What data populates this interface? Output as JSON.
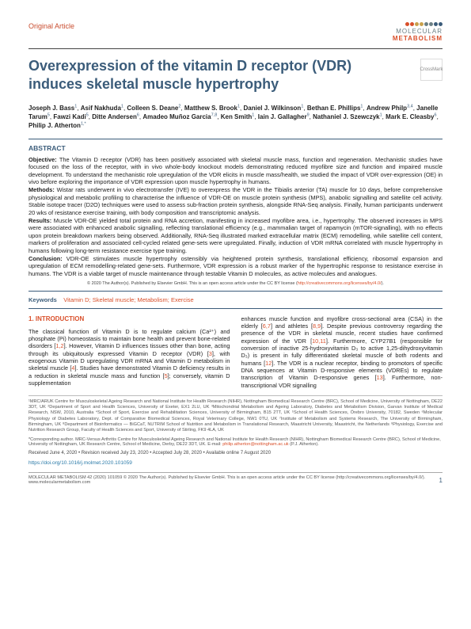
{
  "articleType": "Original Article",
  "journal": {
    "line1": "MOLECULAR",
    "line2": "METABOLISM"
  },
  "logoDots": [
    "#d94f2a",
    "#d94f2a",
    "#c9a14d",
    "#c9a14d",
    "#6b7f84",
    "#6b7f84",
    "#3b5c7a",
    "#3b5c7a"
  ],
  "title": "Overexpression of the vitamin D receptor (VDR) induces skeletal muscle hypertrophy",
  "badge": "CrossMark",
  "authors": "Joseph J. Bass|1|, Asif Nakhuda|1|, Colleen S. Deane|2|, Matthew S. Brook|1|, Daniel J. Wilkinson|1|, Bethan E. Phillips|1|, Andrew Philp|3,4|, Janelle Tarum|5|, Fawzi Kadi|5|, Ditte Andersen|6|, Amadeo Muñoz Garcia|7,8|, Ken Smith|1|, Iain J. Gallagher|9|, Nathaniel J. Szewczyk|1|, Mark E. Cleasby|6|, Philip J. Atherton|1,*|",
  "abstractHead": "ABSTRACT",
  "abstract": {
    "objective": "Objective: The Vitamin D receptor (VDR) has been positively associated with skeletal muscle mass, function and regeneration. Mechanistic studies have focused on the loss of the receptor, with in vivo whole-body knockout models demonstrating reduced myofibre size and function and impaired muscle development. To understand the mechanistic role upregulation of the VDR elicits in muscle mass/health, we studied the impact of VDR over-expression (OE) in vivo before exploring the importance of VDR expression upon muscle hypertrophy in humans.",
    "methods": "Methods: Wistar rats underwent in vivo electrotransfer (IVE) to overexpress the VDR in the Tibialis anterior (TA) muscle for 10 days, before comprehensive physiological and metabolic profiling to characterise the influence of VDR-OE on muscle protein synthesis (MPS), anabolic signalling and satellite cell activity. Stable isotope tracer (D2O) techniques were used to assess sub-fraction protein synthesis, alongside RNA-Seq analysis. Finally, human participants underwent 20 wks of resistance exercise training, with body composition and transcriptomic analysis.",
    "results": "Results: Muscle VDR-OE yielded total protein and RNA accretion, manifesting in increased myofibre area, i.e., hypertrophy. The observed increases in MPS were associated with enhanced anabolic signalling, reflecting translational efficiency (e.g., mammalian target of rapamycin (mTOR-signalling), with no effects upon protein breakdown markers being observed. Additionally, RNA-Seq illustrated marked extracellular matrix (ECM) remodelling, while satellite cell content, markers of proliferation and associated cell-cycled related gene-sets were upregulated. Finally, induction of VDR mRNA correlated with muscle hypertrophy in humans following long-term resistance exercise type training.",
    "conclusion": "Conclusion: VDR-OE stimulates muscle hypertrophy ostensibly via heightened protein synthesis, translational efficiency, ribosomal expansion and upregulation of ECM remodelling-related gene-sets. Furthermore, VDR expression is a robust marker of the hypertrophic response to resistance exercise in humans. The VDR is a viable target of muscle maintenance through testable Vitamin D molecules, as active molecules and analogues."
  },
  "license": "© 2020 The Author(s). Published by Elsevier GmbH. This is an open access article under the CC BY license (http://creativecommons.org/licenses/by/4.0/).",
  "kwLabel": "Keywords",
  "keywords": "Vitamin D; Skeletal muscle; Metabolism; Exercise",
  "introHead": "1. INTRODUCTION",
  "col1": "The classical function of Vitamin D is to regulate calcium (Ca²⁺) and phosphate (Pi) homeostasis to maintain bone health and prevent bone-related disorders [1,2]. However, Vitamin D influences tissues other than bone, acting through its ubiquitously expressed Vitamin D receptor (VDR) [3], with exogenous Vitamin D upregulating VDR mRNA and Vitamin D metabolism in skeletal muscle [4]. Studies have demonstrated Vitamin D deficiency results in a reduction in skeletal muscle mass and function [5]; conversely, vitamin D supplementation",
  "col2": "enhances muscle function and myofibre cross-sectional area (CSA) in the elderly [6,7] and athletes [8,9]. Despite previous controversy regarding the presence of the VDR in skeletal muscle, recent studies have confirmed expression of the VDR [10,11]. Furthermore, CYP27B1 (responsible for conversion of inactive 25-hydroxyvitamin D₃ to active 1,25-dihydroxyvitamin D₃) is present in fully differentiated skeletal muscle of both rodents and humans [12]. The VDR is a nuclear receptor, binding to promotors of specific DNA sequences at Vitamin D-responsive elements (VDREs) to regulate transcription of Vitamin D-responsive genes [13]. Furthermore, non-transcriptional VDR signalling",
  "affiliations": "¹MRC/ARUK Centre for Musculoskeletal Ageing Research and National Institute for Health Research (NIHR), Nottingham Biomedical Research Centre (BRC), School of Medicine, University of Nottingham, DE22 3DT, UK ²Department of Sport and Health Sciences, University of Exeter, EX1 2LU, UK ³Mitochondrial Metabolism and Ageing Laboratory, Diabetes and Metabolism Division, Garvan Institute of Medical Research, NSW, 2010, Australia ⁴School of Sport, Exercise and Rehabilitation Sciences, University of Birmingham, B15 2TT, UK ⁵School of Health Sciences, Örebro University, 70182, Sweden ⁶Molecular Physiology of Diabetes Laboratory, Dept. of Comparative Biomedical Sciences, Royal Veterinary College, NW1 0TU, UK ⁷Institute of Metabolism and Systems Research, The University of Birmingham, Birmingham, UK ⁸Department of Bioinformatics — BiGCaT, NUTRIM School of Nutrition and Metabolism in Translational Research, Maastricht University, Maastricht, the Netherlands ⁹Physiology, Exercise and Nutrition Research Group, Faculty of Health Sciences and Sport, University of Stirling, FK9 4LA, UK",
  "corresponding": "*Corresponding author. MRC-Versus Arthritis Centre for Musculoskeletal Ageing Research and National Institute for Health Research (NIHR), Nottingham Biomedical Research Centre (BRC), School of Medicine, University of Nottingham, UK Research Centre, School of Medicine, Derby, DE22 3DT, UK. E-mail: ",
  "corrEmail": "philip.atherton@nottingham.ac.uk",
  "corrName": " (P.J. Atherton).",
  "dates": "Received June 4, 2020 • Revision received July 23, 2020 • Accepted July 28, 2020 • Available online 7 August 2020",
  "doi": "https://doi.org/10.1016/j.molmet.2020.101059",
  "footer": {
    "left": "MOLECULAR METABOLISM 42 (2020) 101059    © 2020 The Author(s). Published by Elsevier GmbH. This is an open access article under the CC BY license (http://creativecommons.org/licenses/by/4.0/).",
    "site": "www.molecularmetabolism.com",
    "page": "1"
  }
}
